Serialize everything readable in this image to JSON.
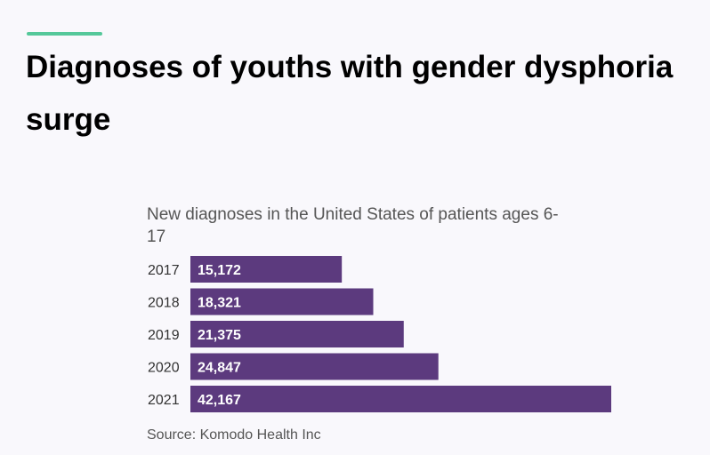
{
  "header": {
    "title": "Diagnoses of youths with gender dysphoria surge",
    "accent_color": "#55c89a"
  },
  "chart_data": {
    "type": "bar",
    "orientation": "horizontal",
    "title": "New diagnoses in the United States of patients ages 6-17",
    "categories": [
      "2017",
      "2018",
      "2019",
      "2020",
      "2021"
    ],
    "values": [
      15172,
      18321,
      21375,
      24847,
      42167
    ],
    "data_labels": [
      "15,172",
      "18,321",
      "21,375",
      "24,847",
      "42,167"
    ],
    "xlim": [
      0,
      42167
    ],
    "bar_color": "#5c3a7e",
    "grid": false,
    "legend": "none",
    "source": "Source: Komodo Health Inc"
  }
}
